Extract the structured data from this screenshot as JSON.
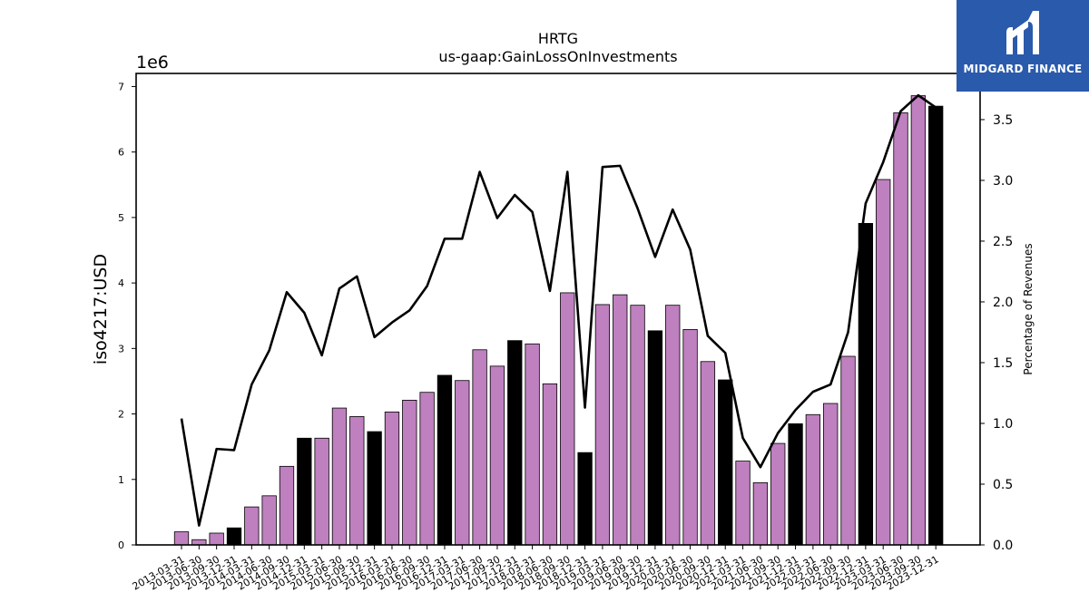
{
  "brand": {
    "name": "MIDGARD FINANCE",
    "colors": {
      "background": "#2a5aab",
      "text": "#ffffff"
    }
  },
  "chart_data": {
    "type": "bar",
    "title": "HRTG",
    "subtitle": "us-gaap:GainLossOnInvestments",
    "ylabel": "iso4217:USD",
    "y2label": "Percentage of Revenues",
    "y_offset_label": "1e6",
    "ylim": [
      0,
      7200000
    ],
    "y2lim": [
      0,
      3.88
    ],
    "yticks": [
      0,
      1,
      2,
      3,
      4,
      5,
      6,
      7
    ],
    "y2ticks": [
      "0.0",
      "0.5",
      "1.0",
      "1.5",
      "2.0",
      "2.5",
      "3.0",
      "3.5"
    ],
    "categories": [
      "2013-03-31",
      "2013-06-30",
      "2013-09-30",
      "2013-12-31",
      "2014-03-31",
      "2014-06-30",
      "2014-09-30",
      "2014-12-31",
      "2015-03-31",
      "2015-06-30",
      "2015-09-30",
      "2015-12-31",
      "2016-03-31",
      "2016-06-30",
      "2016-09-30",
      "2016-12-31",
      "2017-03-31",
      "2017-06-30",
      "2017-09-30",
      "2017-12-31",
      "2018-03-31",
      "2018-06-30",
      "2018-09-30",
      "2018-12-31",
      "2019-03-31",
      "2019-06-30",
      "2019-09-30",
      "2019-12-31",
      "2020-03-31",
      "2020-06-30",
      "2020-09-30",
      "2020-12-31",
      "2021-03-31",
      "2021-06-30",
      "2021-09-30",
      "2021-12-31",
      "2022-03-31",
      "2022-06-30",
      "2022-09-30",
      "2022-12-31",
      "2023-03-31",
      "2023-06-30",
      "2023-09-30",
      "2023-12-31"
    ],
    "series": [
      {
        "kind": "bar",
        "values": [
          200000,
          80000,
          180000,
          260000,
          580000,
          750000,
          1200000,
          1630000,
          1630000,
          2090000,
          1960000,
          1730000,
          2030000,
          2210000,
          2330000,
          2590000,
          2510000,
          2980000,
          2730000,
          3120000,
          3070000,
          2460000,
          3850000,
          1410000,
          3670000,
          3820000,
          3660000,
          3270000,
          3660000,
          3290000,
          2800000,
          2520000,
          1280000,
          950000,
          1550000,
          1850000,
          1990000,
          2160000,
          2880000,
          4910000,
          5580000,
          6600000,
          6860000,
          6700000
        ],
        "fiscal_year_end": [
          false,
          false,
          false,
          true,
          false,
          false,
          false,
          true,
          false,
          false,
          false,
          true,
          false,
          false,
          false,
          true,
          false,
          false,
          false,
          true,
          false,
          false,
          false,
          true,
          false,
          false,
          false,
          true,
          false,
          false,
          false,
          true,
          false,
          false,
          false,
          true,
          false,
          false,
          false,
          true,
          false,
          false,
          false,
          true
        ],
        "color": "#bf80bf",
        "year_end_color": "#000000"
      },
      {
        "kind": "line",
        "axis": "right",
        "values": [
          1.04,
          0.16,
          0.79,
          0.78,
          1.32,
          1.6,
          2.08,
          1.91,
          1.56,
          2.11,
          2.21,
          1.71,
          1.83,
          1.93,
          2.13,
          2.52,
          2.52,
          3.07,
          2.69,
          2.88,
          2.74,
          2.09,
          3.07,
          1.13,
          3.11,
          3.12,
          2.77,
          2.37,
          2.76,
          2.43,
          1.72,
          1.58,
          0.88,
          0.64,
          0.92,
          1.11,
          1.26,
          1.32,
          1.75,
          2.81,
          3.15,
          3.57,
          3.7,
          3.6
        ],
        "color": "#000000"
      }
    ]
  }
}
